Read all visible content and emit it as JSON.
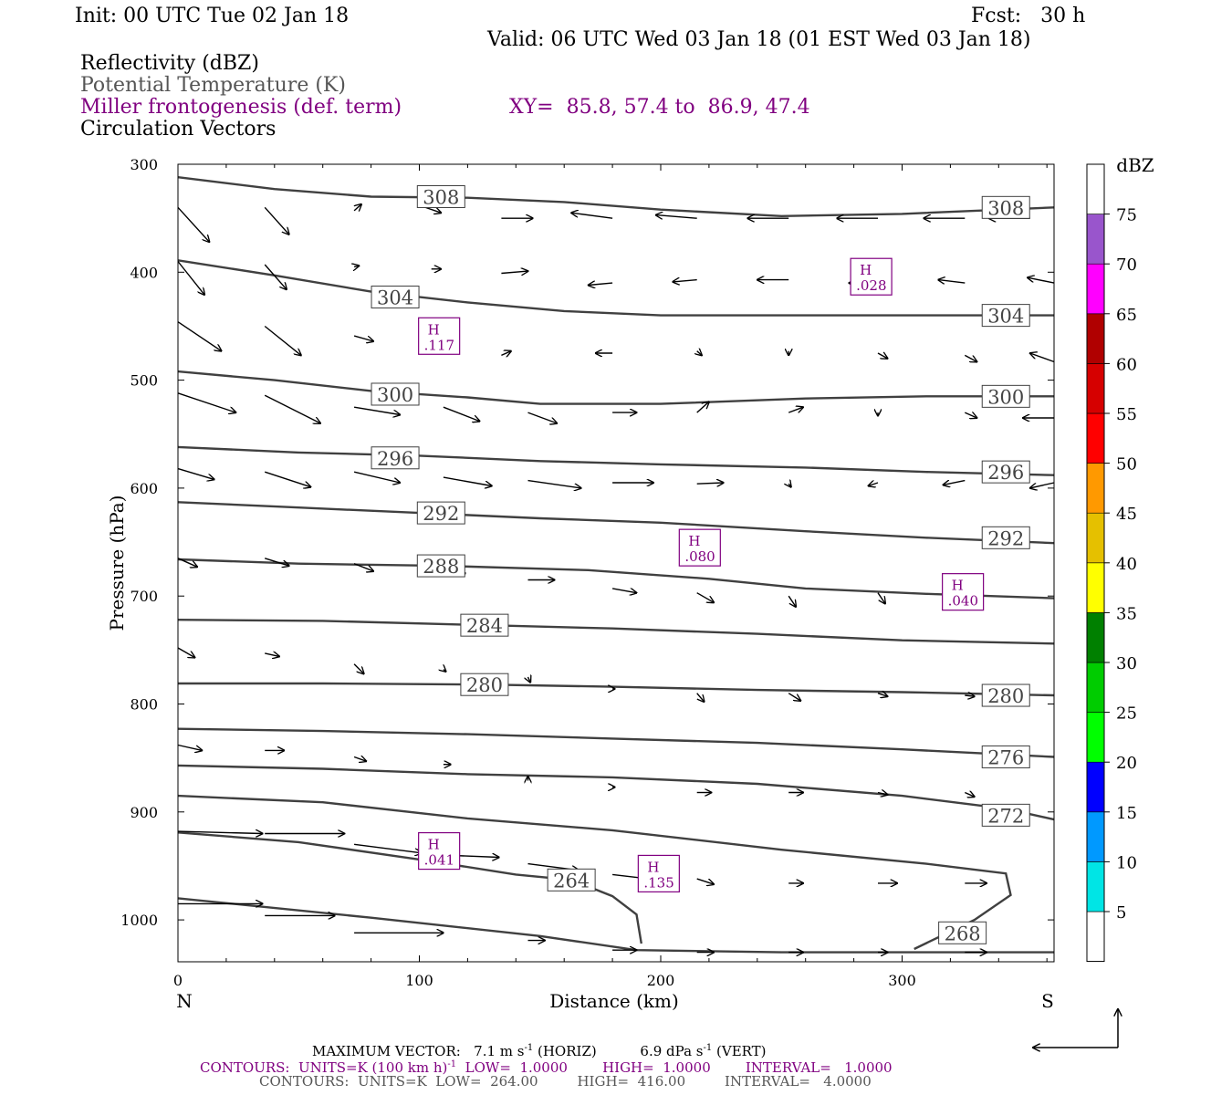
{
  "header": {
    "init": "Init: 00 UTC Tue 02 Jan 18",
    "fcst": "Fcst:   30 h",
    "valid": "Valid: 06 UTC Wed 03 Jan 18 (01 EST Wed 03 Jan 18)",
    "field1": "Reflectivity (dBZ)",
    "field2": "Potential Temperature (K)",
    "field3": "Miller frontogenesis (def. term)",
    "xy": "XY=  85.8, 57.4 to  86.9, 47.4",
    "field4": "Circulation Vectors"
  },
  "colors": {
    "isentrope": "#404040",
    "frontogenesis": "#800080",
    "vector": "#000000"
  },
  "chart_data": {
    "type": "cross-section",
    "xlabel": "Distance (km)",
    "ylabel": "Pressure (hPa)",
    "xlim": [
      0,
      363
    ],
    "ylim": [
      300,
      1040
    ],
    "y_scale": "linear, inverted (pressure increases downward)",
    "xticks": [
      0,
      100,
      200,
      300
    ],
    "yticks": [
      300,
      400,
      500,
      600,
      700,
      800,
      900,
      1000
    ],
    "x_end_labels": {
      "left": "N",
      "right": "S"
    },
    "isentropes": [
      {
        "theta": 308,
        "points": [
          [
            0,
            312
          ],
          [
            40,
            323
          ],
          [
            80,
            330
          ],
          [
            120,
            331
          ],
          [
            160,
            335
          ],
          [
            200,
            342
          ],
          [
            250,
            348
          ],
          [
            300,
            346
          ],
          [
            363,
            340
          ]
        ],
        "labels": [
          [
            109,
            330
          ],
          [
            343,
            340
          ]
        ]
      },
      {
        "theta": 304,
        "points": [
          [
            0,
            389
          ],
          [
            40,
            403
          ],
          [
            80,
            418
          ],
          [
            120,
            428
          ],
          [
            160,
            436
          ],
          [
            200,
            440
          ],
          [
            250,
            440
          ],
          [
            300,
            440
          ],
          [
            363,
            440
          ]
        ],
        "labels": [
          [
            90,
            423
          ],
          [
            343,
            440
          ]
        ]
      },
      {
        "theta": 300,
        "points": [
          [
            0,
            492
          ],
          [
            40,
            500
          ],
          [
            80,
            510
          ],
          [
            120,
            516
          ],
          [
            150,
            522
          ],
          [
            200,
            522
          ],
          [
            260,
            517
          ],
          [
            310,
            515
          ],
          [
            363,
            515
          ]
        ],
        "labels": [
          [
            90,
            513
          ],
          [
            343,
            515
          ]
        ]
      },
      {
        "theta": 296,
        "points": [
          [
            0,
            562
          ],
          [
            50,
            567
          ],
          [
            100,
            570
          ],
          [
            150,
            575
          ],
          [
            200,
            578
          ],
          [
            260,
            581
          ],
          [
            310,
            585
          ],
          [
            363,
            588
          ]
        ],
        "labels": [
          [
            90,
            572
          ],
          [
            343,
            585
          ]
        ]
      },
      {
        "theta": 292,
        "points": [
          [
            0,
            613
          ],
          [
            50,
            618
          ],
          [
            100,
            623
          ],
          [
            150,
            628
          ],
          [
            200,
            632
          ],
          [
            260,
            640
          ],
          [
            310,
            646
          ],
          [
            363,
            651
          ]
        ],
        "labels": [
          [
            109,
            623
          ],
          [
            343,
            646
          ]
        ]
      },
      {
        "theta": 288,
        "points": [
          [
            0,
            666
          ],
          [
            50,
            670
          ],
          [
            110,
            672
          ],
          [
            170,
            676
          ],
          [
            220,
            684
          ],
          [
            260,
            693
          ],
          [
            310,
            698
          ],
          [
            363,
            702
          ]
        ],
        "labels": [
          [
            109,
            672
          ],
          []
        ]
      },
      {
        "theta": 284,
        "points": [
          [
            0,
            722
          ],
          [
            60,
            723
          ],
          [
            127,
            727
          ],
          [
            180,
            730
          ],
          [
            240,
            735
          ],
          [
            300,
            741
          ],
          [
            363,
            744
          ]
        ],
        "labels": [
          [
            127,
            727
          ],
          []
        ]
      },
      {
        "theta": 280,
        "points": [
          [
            0,
            781
          ],
          [
            60,
            781
          ],
          [
            127,
            782
          ],
          [
            180,
            784
          ],
          [
            240,
            787
          ],
          [
            300,
            789
          ],
          [
            363,
            792
          ]
        ],
        "labels": [
          [
            127,
            782
          ],
          [
            343,
            792
          ]
        ]
      },
      {
        "theta": 276,
        "points": [
          [
            0,
            823
          ],
          [
            60,
            825
          ],
          [
            120,
            828
          ],
          [
            180,
            832
          ],
          [
            240,
            836
          ],
          [
            300,
            842
          ],
          [
            363,
            849
          ]
        ],
        "labels": [
          [],
          [
            343,
            849
          ]
        ]
      },
      {
        "theta": 272,
        "points": [
          [
            0,
            857
          ],
          [
            60,
            860
          ],
          [
            120,
            865
          ],
          [
            180,
            868
          ],
          [
            240,
            874
          ],
          [
            300,
            885
          ],
          [
            343,
            897
          ],
          [
            363,
            907
          ]
        ],
        "labels": [
          [],
          [
            343,
            903
          ]
        ]
      },
      {
        "theta": 268,
        "points": [
          [
            0,
            885
          ],
          [
            60,
            891
          ],
          [
            120,
            906
          ],
          [
            180,
            917
          ],
          [
            250,
            935
          ],
          [
            310,
            948
          ],
          [
            343,
            957
          ],
          [
            345,
            977
          ],
          [
            330,
            1000
          ],
          [
            305,
            1027
          ]
        ],
        "labels": [
          [],
          [
            325,
            1012
          ]
        ]
      },
      {
        "theta": 264,
        "points": [
          [
            0,
            919
          ],
          [
            50,
            928
          ],
          [
            100,
            944
          ],
          [
            140,
            958
          ],
          [
            163,
            963
          ],
          [
            180,
            978
          ],
          [
            190,
            995
          ],
          [
            192,
            1022
          ]
        ],
        "labels": [
          [
            163,
            963
          ],
          []
        ]
      },
      {
        "theta": "ground",
        "points": [
          [
            0,
            980
          ],
          [
            80,
            998
          ],
          [
            150,
            1015
          ],
          [
            190,
            1028
          ],
          [
            250,
            1030
          ],
          [
            300,
            1030
          ],
          [
            363,
            1030
          ]
        ],
        "labels": [
          [],
          []
        ]
      }
    ],
    "isentrope_labels": [
      "308",
      "304",
      "300",
      "296",
      "292",
      "288",
      "284",
      "280",
      "276",
      "272",
      "268",
      "264"
    ],
    "frontogenesis_maxima": [
      {
        "x": 108,
        "p": 460,
        "label": "H",
        "value": ".117"
      },
      {
        "x": 287,
        "p": 405,
        "label": "H",
        "value": ".028"
      },
      {
        "x": 216,
        "p": 656,
        "label": "H",
        "value": ".080"
      },
      {
        "x": 325,
        "p": 697,
        "label": "H",
        "value": ".040"
      },
      {
        "x": 108,
        "p": 937,
        "label": "H",
        "value": ".041"
      },
      {
        "x": 199,
        "p": 958,
        "label": "H",
        "value": ".135"
      }
    ],
    "vectors": [
      [
        0,
        340,
        13,
        372
      ],
      [
        36,
        340,
        46,
        365
      ],
      [
        73,
        343,
        76,
        337
      ],
      [
        100,
        338,
        109,
        345
      ],
      [
        134,
        350,
        147,
        350
      ],
      [
        180,
        350,
        163,
        345
      ],
      [
        215,
        350,
        198,
        347
      ],
      [
        253,
        350,
        236,
        350
      ],
      [
        290,
        350,
        273,
        350
      ],
      [
        326,
        350,
        309,
        350
      ],
      [
        353,
        350,
        336,
        350
      ],
      [
        0,
        390,
        11,
        421
      ],
      [
        36,
        393,
        45,
        416
      ],
      [
        73,
        395,
        75,
        394
      ],
      [
        105,
        397,
        109,
        397
      ],
      [
        134,
        401,
        145,
        399
      ],
      [
        180,
        410,
        170,
        412
      ],
      [
        215,
        407,
        205,
        409
      ],
      [
        253,
        407,
        240,
        407
      ],
      [
        290,
        410,
        278,
        410
      ],
      [
        326,
        410,
        315,
        407
      ],
      [
        363,
        410,
        352,
        405
      ],
      [
        0,
        446,
        18,
        473
      ],
      [
        36,
        450,
        51,
        477
      ],
      [
        73,
        459,
        81,
        464
      ],
      [
        134,
        477,
        138,
        473
      ],
      [
        180,
        475,
        173,
        475
      ],
      [
        215,
        473,
        217,
        477
      ],
      [
        253,
        473,
        253,
        477
      ],
      [
        290,
        475,
        294,
        480
      ],
      [
        326,
        477,
        331,
        483
      ],
      [
        363,
        483,
        353,
        475
      ],
      [
        0,
        512,
        24,
        530
      ],
      [
        36,
        514,
        59,
        540
      ],
      [
        73,
        525,
        92,
        532
      ],
      [
        110,
        525,
        125,
        538
      ],
      [
        145,
        530,
        157,
        540
      ],
      [
        180,
        530,
        190,
        530
      ],
      [
        215,
        530,
        220,
        520
      ],
      [
        253,
        530,
        259,
        525
      ],
      [
        290,
        530,
        290,
        533
      ],
      [
        326,
        530,
        331,
        535
      ],
      [
        363,
        535,
        350,
        535
      ],
      [
        0,
        582,
        15,
        592
      ],
      [
        36,
        585,
        55,
        599
      ],
      [
        73,
        585,
        92,
        595
      ],
      [
        110,
        590,
        130,
        598
      ],
      [
        145,
        593,
        167,
        600
      ],
      [
        180,
        595,
        197,
        595
      ],
      [
        215,
        596,
        226,
        595
      ],
      [
        253,
        596,
        254,
        599
      ],
      [
        290,
        595,
        286,
        598
      ],
      [
        326,
        593,
        317,
        597
      ],
      [
        363,
        595,
        353,
        600
      ],
      [
        0,
        665,
        8,
        673
      ],
      [
        36,
        665,
        46,
        672
      ],
      [
        73,
        670,
        81,
        677
      ],
      [
        110,
        675,
        119,
        679
      ],
      [
        145,
        685,
        156,
        685
      ],
      [
        180,
        693,
        190,
        697
      ],
      [
        215,
        697,
        222,
        706
      ],
      [
        253,
        700,
        256,
        710
      ],
      [
        290,
        697,
        293,
        707
      ],
      [
        326,
        700,
        331,
        705
      ],
      [
        0,
        748,
        7,
        757
      ],
      [
        36,
        753,
        42,
        756
      ],
      [
        73,
        763,
        77,
        772
      ],
      [
        110,
        768,
        111,
        770
      ],
      [
        145,
        775,
        146,
        780
      ],
      [
        180,
        786,
        181,
        786
      ],
      [
        215,
        790,
        218,
        798
      ],
      [
        253,
        790,
        258,
        797
      ],
      [
        290,
        790,
        294,
        793
      ],
      [
        326,
        792,
        330,
        793
      ],
      [
        0,
        838,
        10,
        843
      ],
      [
        36,
        843,
        44,
        843
      ],
      [
        73,
        849,
        78,
        853
      ],
      [
        110,
        856,
        113,
        856
      ],
      [
        145,
        871,
        145,
        867
      ],
      [
        180,
        877,
        181,
        877
      ],
      [
        215,
        882,
        221,
        882
      ],
      [
        253,
        882,
        259,
        882
      ],
      [
        290,
        882,
        294,
        884
      ],
      [
        326,
        882,
        330,
        886
      ],
      [
        0,
        918,
        35,
        920
      ],
      [
        36,
        920,
        69,
        920
      ],
      [
        73,
        930,
        101,
        938
      ],
      [
        110,
        940,
        133,
        942
      ],
      [
        145,
        948,
        166,
        954
      ],
      [
        180,
        958,
        195,
        962
      ],
      [
        215,
        962,
        222,
        967
      ],
      [
        253,
        966,
        259,
        966
      ],
      [
        290,
        966,
        298,
        966
      ],
      [
        326,
        966,
        335,
        966
      ],
      [
        0,
        985,
        35,
        985
      ],
      [
        36,
        996,
        65,
        996
      ],
      [
        73,
        1012,
        110,
        1012
      ],
      [
        145,
        1019,
        152,
        1019
      ],
      [
        180,
        1028,
        190,
        1028
      ],
      [
        215,
        1030,
        222,
        1030
      ],
      [
        253,
        1030,
        259,
        1030
      ],
      [
        290,
        1030,
        294,
        1030
      ],
      [
        326,
        1030,
        335,
        1030
      ]
    ],
    "colorbar": {
      "label": "dBZ",
      "tick_labels": [
        "5",
        "10",
        "15",
        "20",
        "25",
        "30",
        "35",
        "40",
        "45",
        "50",
        "55",
        "60",
        "65",
        "70",
        "75"
      ],
      "colors": [
        "#00e5e5",
        "#0099ff",
        "#0000ff",
        "#00ff00",
        "#00cc00",
        "#008000",
        "#ffff00",
        "#e5c000",
        "#ff9900",
        "#ff0000",
        "#d60000",
        "#b00000",
        "#ff00ff",
        "#9955cc",
        "#ffffff"
      ]
    },
    "reference_vector": {
      "horiz": "7.1 m s-1",
      "vert": "6.9 dPa s-1"
    }
  },
  "footer": {
    "max_vec_a": "MAXIMUM VECTOR:",
    "max_vec_b": "7.1 m s",
    "max_vec_c": "(HORIZ)",
    "max_vec_d": "6.9 dPa s",
    "max_vec_e": "(VERT)",
    "max_vec_sup": "-1",
    "contours1": "CONTOURS:  UNITS=K (100 km h)",
    "contours1_sup": "-1",
    "contours1_rest": "  LOW=  1.0000        HIGH=  1.0000        INTERVAL=   1.0000",
    "contours2": "CONTOURS:  UNITS=K  LOW=  264.00         HIGH=  416.00         INTERVAL=   4.0000"
  }
}
